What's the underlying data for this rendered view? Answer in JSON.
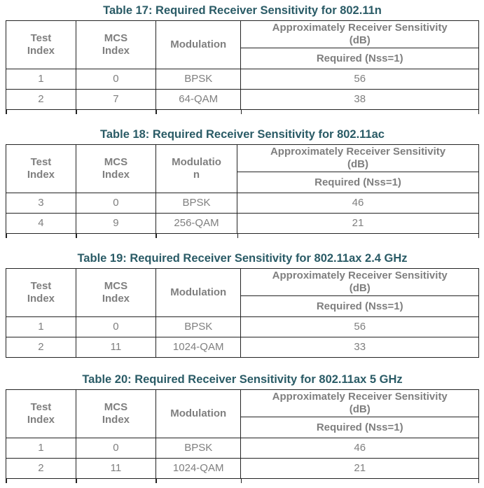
{
  "colors": {
    "title": "#2A5B66",
    "text": "#7F7F7F",
    "border": "#232323",
    "background": "#FFFFFF"
  },
  "tables": [
    {
      "title": "Table 17: Required Receiver Sensitivity for 802.11n",
      "header": {
        "test": "Test\nIndex",
        "mcs": "MCS\nIndex",
        "modulation": "Modulation",
        "group": "Approximately Receiver Sensitivity\n(dB)",
        "sub": "Required (Nss=1)"
      },
      "rows": [
        [
          "1",
          "0",
          "BPSK",
          "56"
        ],
        [
          "2",
          "7",
          "64-QAM",
          "38"
        ]
      ],
      "col_widths_pct": [
        14.8,
        16.9,
        18.0,
        50.3
      ],
      "partial_next_row_visible": true
    },
    {
      "title": "Table 18: Required Receiver Sensitivity for 802.11ac",
      "header": {
        "test": "Test\nIndex",
        "mcs": "MCS\nIndex",
        "modulation": "Modulatio\nn",
        "group": "Approximately Receiver Sensitivity\n(dB)",
        "sub": "Required (Nss=1)"
      },
      "rows": [
        [
          "3",
          "0",
          "BPSK",
          "46"
        ],
        [
          "4",
          "9",
          "256-QAM",
          "21"
        ]
      ],
      "col_widths_pct": [
        14.8,
        16.9,
        17.2,
        51.1
      ],
      "partial_next_row_visible": true
    },
    {
      "title": "Table 19: Required Receiver Sensitivity for 802.11ax 2.4 GHz",
      "header": {
        "test": "Test\nIndex",
        "mcs": "MCS\nIndex",
        "modulation": "Modulation",
        "group": "Approximately Receiver Sensitivity\n(dB)",
        "sub": "Required (Nss=1)"
      },
      "rows": [
        [
          "1",
          "0",
          "BPSK",
          "56"
        ],
        [
          "2",
          "11",
          "1024-QAM",
          "33"
        ]
      ],
      "col_widths_pct": [
        14.8,
        16.9,
        18.0,
        50.3
      ],
      "partial_next_row_visible": false
    },
    {
      "title": "Table 20: Required Receiver Sensitivity for 802.11ax 5 GHz",
      "header": {
        "test": "Test\nIndex",
        "mcs": "MCS\nIndex",
        "modulation": "Modulation",
        "group": "Approximately Receiver Sensitivity\n(dB)",
        "sub": "Required (Nss=1)"
      },
      "rows": [
        [
          "1",
          "0",
          "BPSK",
          "46"
        ],
        [
          "2",
          "11",
          "1024-QAM",
          "21"
        ]
      ],
      "col_widths_pct": [
        14.8,
        16.9,
        18.0,
        50.3
      ],
      "partial_next_row_visible": true
    }
  ]
}
